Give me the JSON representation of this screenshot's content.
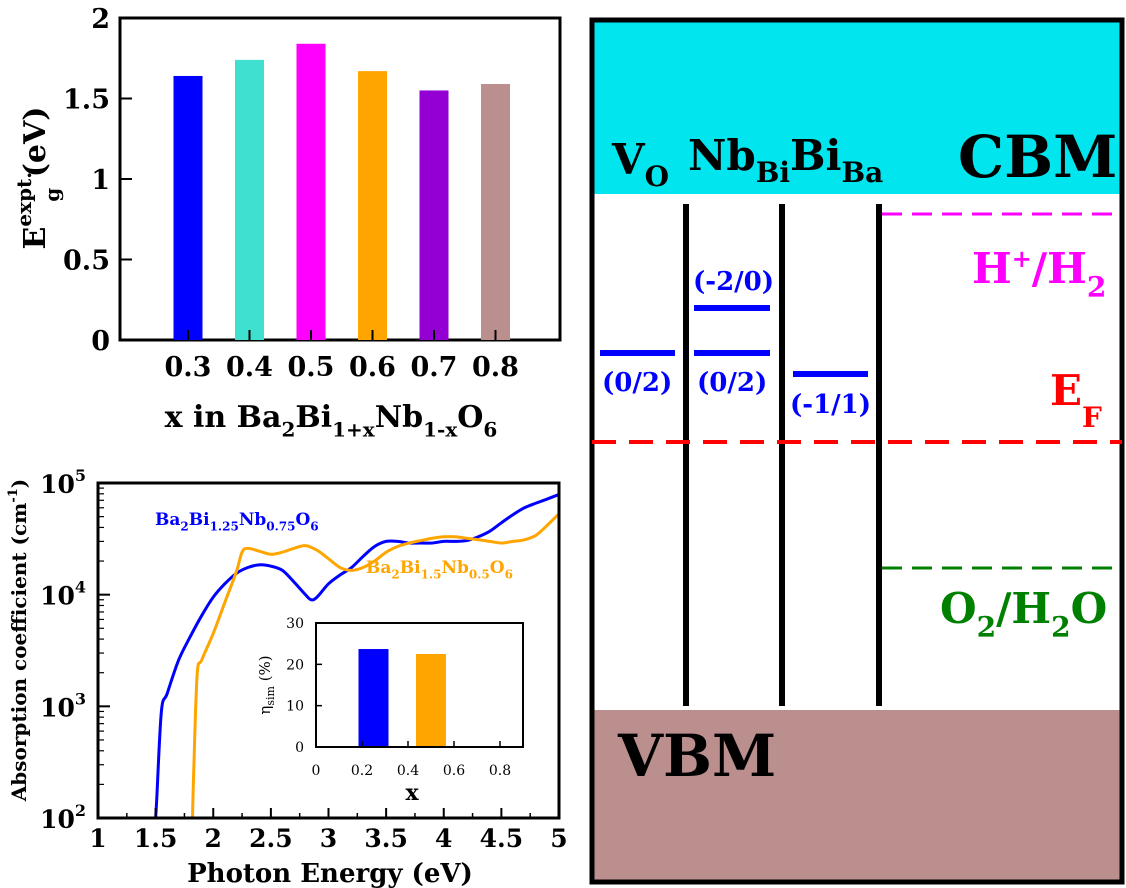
{
  "chart_data": [
    {
      "type": "bar",
      "categories": [
        "0.3",
        "0.4",
        "0.5",
        "0.6",
        "0.7",
        "0.8"
      ],
      "values": [
        1.64,
        1.74,
        1.84,
        1.67,
        1.55,
        1.59
      ],
      "colors": [
        "#0000ff",
        "#40e0d0",
        "#ff00ff",
        "#ffa500",
        "#9400d3",
        "#bc8f8f"
      ],
      "ylabel": {
        "main": "E",
        "sup": "expt.",
        "sub": "g",
        "unit": " (eV)"
      },
      "xlabel": {
        "parts": [
          {
            "t": "x in Ba",
            "s": "n"
          },
          {
            "t": "2",
            "s": "sub"
          },
          {
            "t": "Bi",
            "s": "n"
          },
          {
            "t": "1+x",
            "s": "sub"
          },
          {
            "t": "Nb",
            "s": "n"
          },
          {
            "t": "1-x",
            "s": "sub"
          },
          {
            "t": "O",
            "s": "n"
          },
          {
            "t": "6",
            "s": "sub"
          }
        ]
      },
      "ylim": [
        0,
        2
      ],
      "yticks": [
        "0",
        "0.5",
        "1",
        "1.5",
        "2"
      ],
      "ytick_values": [
        0,
        0.5,
        1,
        1.5,
        2
      ]
    },
    {
      "type": "line",
      "yscale": "log",
      "xlim": [
        1,
        5
      ],
      "ylim": [
        100,
        100000
      ],
      "xticks": [
        "1",
        "1.5",
        "2",
        "2.5",
        "3",
        "3.5",
        "4",
        "4.5",
        "5"
      ],
      "xtick_values": [
        1,
        1.5,
        2,
        2.5,
        3,
        3.5,
        4,
        4.5,
        5
      ],
      "yticks": [
        {
          "base": "10",
          "exp": "2",
          "v": 100
        },
        {
          "base": "10",
          "exp": "3",
          "v": 1000
        },
        {
          "base": "10",
          "exp": "4",
          "v": 10000
        },
        {
          "base": "10",
          "exp": "5",
          "v": 100000
        }
      ],
      "xlabel": "Photon Energy (eV)",
      "ylabel": {
        "main": "Absorption coefficient (cm",
        "sup": "-1",
        "end": ")"
      },
      "series": [
        {
          "name": "Ba2Bi1.25Nb0.75O6",
          "label_parts": [
            {
              "t": "Ba",
              "s": "n"
            },
            {
              "t": "2",
              "s": "sub"
            },
            {
              "t": "Bi",
              "s": "n"
            },
            {
              "t": "1.25",
              "s": "sub"
            },
            {
              "t": "Nb",
              "s": "n"
            },
            {
              "t": "0.75",
              "s": "sub"
            },
            {
              "t": "O",
              "s": "n"
            },
            {
              "t": "6",
              "s": "sub"
            }
          ],
          "color": "#0000ff",
          "x": [
            1.5,
            1.51,
            1.55,
            1.6,
            1.7,
            1.8,
            1.9,
            2.0,
            2.1,
            2.2,
            2.3,
            2.4,
            2.5,
            2.6,
            2.7,
            2.8,
            2.85,
            2.9,
            3.0,
            3.1,
            3.2,
            3.3,
            3.4,
            3.5,
            3.6,
            3.7,
            3.8,
            3.9,
            4.0,
            4.1,
            4.2,
            4.3,
            4.4,
            4.5,
            4.6,
            4.7,
            4.8,
            4.9,
            5.0
          ],
          "y": [
            100,
            150,
            900,
            1300,
            2600,
            4200,
            6500,
            9500,
            12500,
            15500,
            17500,
            18500,
            18000,
            16500,
            13000,
            10000,
            9000,
            9500,
            12500,
            15000,
            17500,
            22000,
            27000,
            30000,
            30000,
            29000,
            29000,
            29000,
            30000,
            30000,
            30500,
            33000,
            37000,
            44000,
            52000,
            60000,
            66000,
            72000,
            79000
          ]
        },
        {
          "name": "Ba2Bi1.5Nb0.5O6",
          "label_parts": [
            {
              "t": "Ba",
              "s": "n"
            },
            {
              "t": "2",
              "s": "sub"
            },
            {
              "t": "Bi",
              "s": "n"
            },
            {
              "t": "1.5",
              "s": "sub"
            },
            {
              "t": "Nb",
              "s": "n"
            },
            {
              "t": "0.5",
              "s": "sub"
            },
            {
              "t": "O",
              "s": "n"
            },
            {
              "t": "6",
              "s": "sub"
            }
          ],
          "color": "#ffa500",
          "x": [
            1.82,
            1.83,
            1.86,
            1.9,
            2.0,
            2.1,
            2.2,
            2.25,
            2.3,
            2.4,
            2.5,
            2.6,
            2.7,
            2.8,
            2.9,
            3.0,
            3.1,
            3.2,
            3.3,
            3.4,
            3.5,
            3.6,
            3.7,
            3.8,
            3.9,
            4.0,
            4.1,
            4.2,
            4.3,
            4.4,
            4.5,
            4.6,
            4.7,
            4.8,
            4.9,
            5.0
          ],
          "y": [
            100,
            250,
            1900,
            2600,
            4500,
            8500,
            16000,
            24000,
            26000,
            24500,
            23000,
            24000,
            26000,
            27500,
            25000,
            21000,
            17500,
            16500,
            17500,
            20000,
            24000,
            27000,
            29000,
            30500,
            32000,
            33000,
            33000,
            32000,
            31000,
            30000,
            29000,
            30000,
            31000,
            34000,
            42000,
            53000
          ]
        }
      ],
      "inset": {
        "type": "bar",
        "xlim": [
          0,
          0.9
        ],
        "ylim": [
          0,
          30
        ],
        "xticks": [
          "0",
          "0.2",
          "0.4",
          "0.6",
          "0.8"
        ],
        "xtick_values": [
          0,
          0.2,
          0.4,
          0.6,
          0.8
        ],
        "yticks": [
          "0",
          "10",
          "20",
          "30"
        ],
        "ytick_values": [
          0,
          10,
          20,
          30
        ],
        "xlabel": "x",
        "ylabel": {
          "main": "η",
          "sub": "sim",
          "unit": " (%)"
        },
        "bars": [
          {
            "x": 0.25,
            "value": 23.7,
            "color": "#0000ff"
          },
          {
            "x": 0.5,
            "value": 22.5,
            "color": "#ffa500"
          }
        ]
      }
    },
    {
      "type": "diagram",
      "cbm_label": "CBM",
      "vbm_label": "VBM",
      "columns": [
        {
          "main": "V",
          "sub": "O"
        },
        {
          "main": "Nb",
          "sub": "Bi"
        },
        {
          "main": "Bi",
          "sub": "Ba"
        }
      ],
      "levels": [
        {
          "label": "(0/2)"
        },
        {
          "label": "(-2/0)"
        },
        {
          "label": "(0/2)"
        },
        {
          "label": "(-1/1)"
        }
      ],
      "ef": {
        "main": "E",
        "sub": "F",
        "color": "#ff0000"
      },
      "h_level": {
        "parts": [
          {
            "t": "H",
            "s": "n"
          },
          {
            "t": "+",
            "s": "sup"
          },
          {
            "t": "/H",
            "s": "n"
          },
          {
            "t": "2",
            "s": "sub"
          }
        ],
        "color": "#ff00ff"
      },
      "o_level": {
        "parts": [
          {
            "t": "O",
            "s": "n"
          },
          {
            "t": "2",
            "s": "sub"
          },
          {
            "t": "/H",
            "s": "n"
          },
          {
            "t": "2",
            "s": "sub"
          },
          {
            "t": "O",
            "s": "n"
          }
        ],
        "color": "#008000"
      },
      "cbm_color": "#00e5ee",
      "vbm_color": "#bc8f8f",
      "level_color": "#0000ff"
    }
  ]
}
